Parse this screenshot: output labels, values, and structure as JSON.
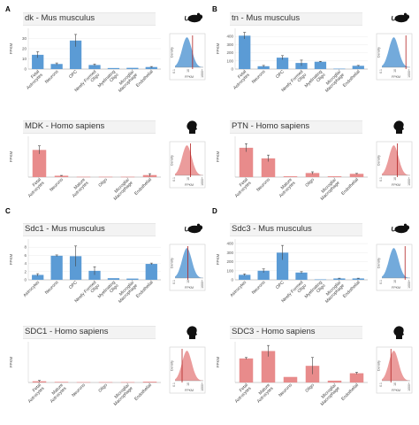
{
  "figure": {
    "panels": [
      {
        "letter": "A"
      },
      {
        "letter": "B"
      },
      {
        "letter": "C"
      },
      {
        "letter": "D"
      }
    ],
    "colors": {
      "mouse": "#5b9bd5",
      "human": "#e88b8b",
      "error": "#444444",
      "density_line": "#b22222"
    }
  },
  "chart_data": [
    {
      "type": "bar",
      "panel": "A",
      "title": "dk - Mus musculus",
      "species": "mouse",
      "ylabel": "FPKM",
      "ylim": [
        0,
        40
      ],
      "yticks": [
        0,
        10,
        20,
        30
      ],
      "categories": [
        "Fetal Astrocytes",
        "Neurons",
        "OPC",
        "Newly Formed Oligo",
        "Myelinating Oligo",
        "Microglia/ Macrophage",
        "Endothelial"
      ],
      "values": [
        14,
        5,
        28,
        4,
        1,
        1.2,
        2
      ],
      "errors": [
        3,
        1,
        6,
        1,
        0,
        0,
        0.5
      ],
      "density": {
        "ylabel": "Density",
        "xlabel": "FPKM",
        "xticks": [
          "0.1",
          "10",
          "1000+"
        ],
        "marker": 0.62
      }
    },
    {
      "type": "bar",
      "panel": "B",
      "title": "tn - Mus musculus",
      "species": "mouse",
      "ylabel": "FPKM",
      "ylim": [
        0,
        500
      ],
      "yticks": [
        0,
        100,
        200,
        300,
        400
      ],
      "categories": [
        "Fetal Astrocytes",
        "Neurons",
        "OPC",
        "Newly Formed Oligo",
        "Myelinating Oligo",
        "Microglia/ Macrophage",
        "Endothelial"
      ],
      "values": [
        410,
        35,
        140,
        75,
        90,
        5,
        40
      ],
      "errors": [
        40,
        10,
        25,
        35,
        5,
        0,
        5
      ],
      "density": {
        "ylabel": "Density",
        "xlabel": "FPKM",
        "xticks": [
          "0.1",
          "10",
          "1000+"
        ],
        "marker": 0.85
      }
    },
    {
      "type": "bar",
      "panel": "A",
      "title": "MDK - Homo sapiens",
      "species": "human",
      "ylabel": "FPKM",
      "ylim": [
        0,
        60
      ],
      "yticks": [],
      "categories": [
        "Fetal Astrocytes",
        "Neurons",
        "Mature Astrocytes",
        "Oligo",
        "Microglia/ Macrophage",
        "Endothelial"
      ],
      "values": [
        40,
        2,
        0.5,
        0.5,
        0.5,
        3
      ],
      "errors": [
        6,
        0.5,
        0,
        0,
        0,
        2
      ],
      "density": {
        "ylabel": "Density",
        "xlabel": "FPKM",
        "xticks": [
          "0.1",
          "10",
          "1000+"
        ],
        "marker": 0.55
      }
    },
    {
      "type": "bar",
      "panel": "B",
      "title": "PTN - Homo sapiens",
      "species": "human",
      "ylabel": "FPKM",
      "ylim": [
        0,
        50
      ],
      "yticks": [],
      "categories": [
        "Fetal Astrocytes",
        "Neurons",
        "Mature Astrocytes",
        "Oligo",
        "Microglia/ Macrophage",
        "Endothelial"
      ],
      "values": [
        36,
        23,
        1,
        5,
        1,
        4
      ],
      "errors": [
        5,
        4,
        0,
        1.5,
        0,
        0.5
      ],
      "density": {
        "ylabel": "Density",
        "xlabel": "FPKM",
        "xticks": [
          "0.1",
          "10",
          "1000+"
        ],
        "marker": 0.55
      }
    },
    {
      "type": "bar",
      "panel": "C",
      "title": "Sdc1 - Mus musculus",
      "species": "mouse",
      "ylabel": "FPKM",
      "ylim": [
        0,
        10
      ],
      "yticks": [
        0,
        2,
        4,
        6,
        8
      ],
      "categories": [
        "Astrocytes",
        "Neurons",
        "OPC",
        "Newly Formed Oligo",
        "Myelinating Oligo",
        "Microglia/ Macrophage",
        "Endothelial"
      ],
      "values": [
        1.2,
        5.9,
        5.8,
        2.2,
        0.4,
        0.3,
        3.9
      ],
      "errors": [
        0.3,
        0.2,
        2.5,
        1.0,
        0,
        0,
        0.2
      ],
      "density": {
        "ylabel": "Density",
        "xlabel": "FPKM",
        "xticks": [
          "0.1",
          "10",
          "1000+"
        ],
        "marker": 0.45
      }
    },
    {
      "type": "bar",
      "panel": "D",
      "title": "Sdc3 - Mus musculus",
      "species": "mouse",
      "ylabel": "FPKM",
      "ylim": [
        0,
        450
      ],
      "yticks": [
        0,
        100,
        200,
        300,
        400
      ],
      "categories": [
        "Astrocytes",
        "Neurons",
        "OPC",
        "Newly Formed Oligo",
        "Myelinating Oligo",
        "Microglia/ Macrophage",
        "Endothelial"
      ],
      "values": [
        55,
        100,
        300,
        80,
        5,
        15,
        15
      ],
      "errors": [
        10,
        20,
        80,
        10,
        0,
        3,
        3
      ],
      "density": {
        "ylabel": "Density",
        "xlabel": "FPKM",
        "xticks": [
          "0.1",
          "10",
          "1000+"
        ],
        "marker": 0.82
      }
    },
    {
      "type": "bar",
      "panel": "C",
      "title": "SDC1 - Homo sapiens",
      "species": "human",
      "ylabel": "FPKM",
      "ylim": [
        0,
        10
      ],
      "yticks": [],
      "categories": [
        "Fetal Astrocytes",
        "Mature Astrocytes",
        "Neurons",
        "Oligo",
        "Microglia/ Macrophage",
        "Endothelial"
      ],
      "values": [
        0.3,
        0.15,
        0.1,
        0.1,
        0.1,
        0.2
      ],
      "errors": [
        0.2,
        0,
        0,
        0,
        0,
        0
      ],
      "density": {
        "ylabel": "Density",
        "xlabel": "FPKM",
        "xticks": [
          "0.1",
          "10",
          "1000+"
        ],
        "marker": 0.25
      }
    },
    {
      "type": "bar",
      "panel": "D",
      "title": "SDC3 - Homo sapiens",
      "species": "human",
      "ylabel": "FPKM",
      "ylim": [
        0,
        22
      ],
      "yticks": [],
      "categories": [
        "Fetal Astrocytes",
        "Mature Astrocytes",
        "Neurons",
        "Oligo",
        "Microglia/ Macrophage",
        "Endothelial"
      ],
      "values": [
        13,
        17,
        3,
        9,
        1,
        5
      ],
      "errors": [
        0.5,
        3,
        0,
        4.5,
        0,
        0.5
      ],
      "density": {
        "ylabel": "Density",
        "xlabel": "FPKM",
        "xticks": [
          "0.1",
          "10",
          "1000+"
        ],
        "marker": 0.32
      }
    }
  ]
}
